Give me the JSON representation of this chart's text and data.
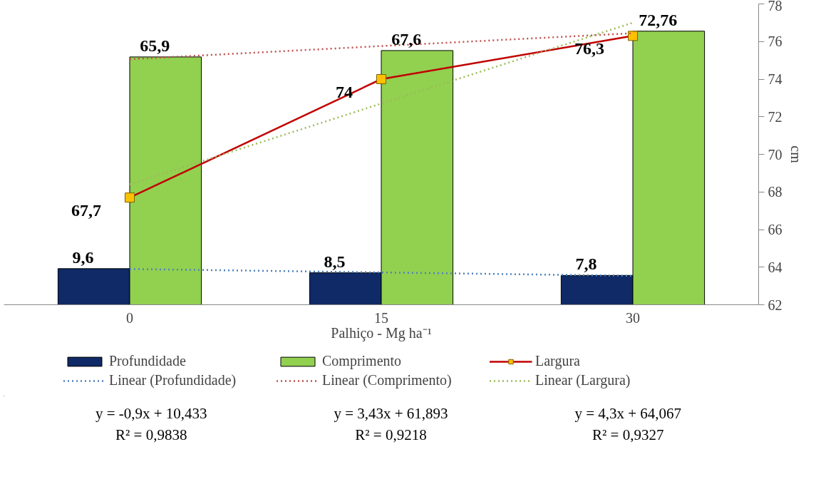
{
  "chart_data": {
    "type": "bar",
    "xlabel": "Palhiço - Mg ha⁻¹",
    "y2label": "cm",
    "categories": [
      "0",
      "15",
      "30"
    ],
    "ylim": [
      0,
      80
    ],
    "y2lim": [
      62,
      78
    ],
    "y2ticks": [
      62,
      64,
      66,
      68,
      70,
      72,
      74,
      76,
      78
    ],
    "grid": false,
    "legend": "bottom",
    "series": [
      {
        "name": "Profundidade",
        "color": "#0f2a66",
        "values": [
          9.6,
          8.5,
          7.8
        ],
        "value_labels": [
          "9,6",
          "8,5",
          "7,8"
        ]
      },
      {
        "name": "Comprimento",
        "color": "#92d050",
        "values": [
          65.9,
          67.6,
          72.76
        ],
        "value_labels": [
          "65,9",
          "67,6",
          "72,76"
        ]
      },
      {
        "name": "Largura",
        "type": "line",
        "axis": "y2",
        "color": "#c00000",
        "marker": "square",
        "colors": [
          "#ffc000",
          "#ffc000",
          "#ffc000"
        ],
        "values": [
          67.7,
          74,
          76.3
        ],
        "value_labels": [
          "67,7",
          "74",
          "76,3"
        ]
      },
      {
        "name": "Linear (Profundidade)",
        "type": "line",
        "line_style": "dotted",
        "color": "#4f81bd",
        "x": [
          "0",
          "15",
          "30"
        ],
        "values": [
          9.5,
          8.6,
          7.7
        ]
      },
      {
        "name": "Linear (Comprimento)",
        "type": "line",
        "line_style": "dotted",
        "color": "#c0504d",
        "x": [
          "0",
          "15",
          "30"
        ],
        "values": [
          65.3,
          68.8,
          72.2
        ]
      },
      {
        "name": "Linear (Largura)",
        "type": "line",
        "axis": "y2",
        "line_style": "dotted",
        "color": "#9bbb59",
        "x": [
          "0",
          "15",
          "30"
        ],
        "values": [
          68.4,
          72.7,
          77.0
        ]
      }
    ],
    "annotations": [
      "y = -0,9x + 10,433\nR² = 0,9838",
      "y = 3,43x + 61,893\nR² = 0,9218",
      "y = 4,3x + 64,067\nR² = 0,9327"
    ]
  }
}
